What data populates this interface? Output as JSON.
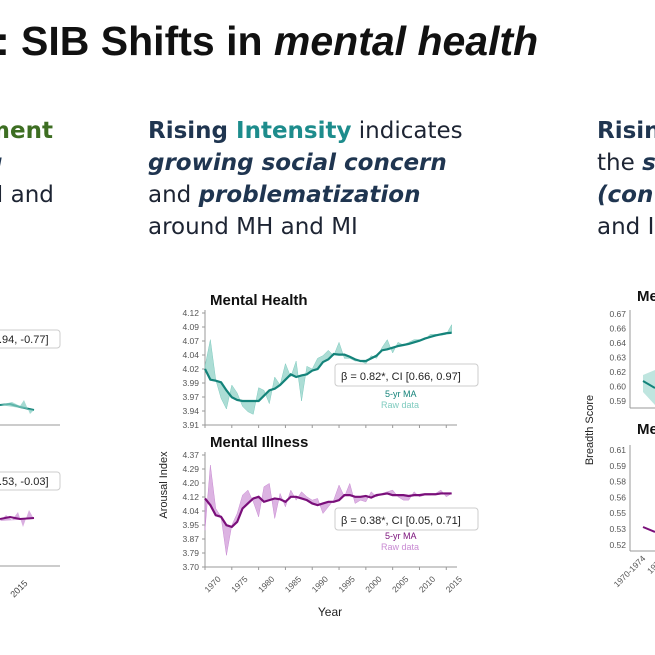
{
  "slide_title": {
    "prefix": ": SIB Shifts in ",
    "italic": "mental health"
  },
  "left_column": {
    "line1": "ment",
    "line2": "g",
    "line3": "H and",
    "line4": "s"
  },
  "middle_column": {
    "line1_a": "Rising ",
    "line1_b": "Intensity",
    "line1_c": " indicates",
    "line2": "growing social concern",
    "line3_a": "and ",
    "line3_b": "problematization",
    "line4": "around MH and MI"
  },
  "right_column": {
    "line1": "Risin",
    "line2_a": "the ",
    "line2_b": "s",
    "line3": "(con",
    "line4": "and I"
  },
  "left_partial_charts": {
    "mh_annotation": ".94, -0.77]",
    "mi_annotation": ".53, -0.03]",
    "x_tick": "2015"
  },
  "right_partial_charts": {
    "ylabel": "Breadth Score",
    "mh_title": "Me",
    "mi_title": "Me",
    "mh_ticks": [
      "0.67",
      "0.66",
      "0.64",
      "0.63",
      "0.62",
      "0.60",
      "0.59"
    ],
    "mi_ticks": [
      "0.61",
      "0.59",
      "0.58",
      "0.56",
      "0.55",
      "0.53",
      "0.52"
    ],
    "x_ticks": [
      "1970-1974",
      "1975-"
    ]
  },
  "colors": {
    "mh_ma": "#14837a",
    "mh_raw": "#7fcbbf",
    "mi_ma": "#7a0f7a",
    "mi_raw": "#c98bd3",
    "heading": "#1f3550",
    "accent_teal": "#1d8c8c",
    "accent_green": "#3d6e22"
  },
  "chart_data": [
    {
      "type": "line",
      "title": "Mental Health",
      "ylabel": "Arousal Index",
      "xlabel": "Year",
      "x_start": 1970,
      "ylim": [
        3.91,
        4.12
      ],
      "yticks": [
        "4.12",
        "4.09",
        "4.07",
        "4.04",
        "4.02",
        "3.99",
        "3.97",
        "3.94",
        "3.91"
      ],
      "annotation": "β = 0.82*, CI [0.66, 0.97]",
      "series": [
        {
          "name": "5-yr MA",
          "values": [
            4.015,
            3.995,
            3.993,
            3.99,
            3.975,
            3.962,
            3.957,
            3.955,
            3.955,
            3.955,
            3.955,
            3.965,
            3.975,
            3.978,
            3.985,
            3.995,
            4.005,
            4.0,
            4.003,
            4.005,
            4.012,
            4.015,
            4.028,
            4.033,
            4.043,
            4.042,
            4.042,
            4.038,
            4.033,
            4.03,
            4.03,
            4.035,
            4.04,
            4.05,
            4.052,
            4.055,
            4.058,
            4.06,
            4.062,
            4.065,
            4.068,
            4.072,
            4.075,
            4.078,
            4.08,
            4.082,
            4.083
          ]
        },
        {
          "name": "Raw data",
          "values": [
            4.02,
            4.07,
            3.995,
            3.96,
            3.94,
            3.985,
            3.97,
            3.945,
            3.935,
            3.93,
            3.98,
            3.975,
            3.95,
            4.0,
            3.985,
            4.025,
            4.0,
            4.03,
            3.955,
            4.02,
            4.015,
            4.035,
            4.04,
            4.05,
            4.04,
            4.065,
            4.035,
            4.035,
            4.03,
            4.03,
            4.025,
            4.04,
            4.035,
            4.055,
            4.07,
            4.045,
            4.065,
            4.06,
            4.065,
            4.07,
            4.07,
            4.07,
            4.08,
            4.08,
            4.078,
            4.08,
            4.098
          ]
        }
      ]
    },
    {
      "type": "line",
      "title": "Mental Illness",
      "ylabel": "Arousal Index",
      "xlabel": "Year",
      "x_start": 1970,
      "ylim": [
        3.7,
        4.37
      ],
      "yticks": [
        "4.37",
        "4.29",
        "4.20",
        "4.12",
        "4.04",
        "3.95",
        "3.87",
        "3.79",
        "3.70"
      ],
      "xticks": [
        "1970",
        "1975",
        "1980",
        "1985",
        "1990",
        "1995",
        "2000",
        "2005",
        "2010",
        "2015"
      ],
      "annotation": "β = 0.38*, CI [0.05, 0.71]",
      "series": [
        {
          "name": "5-yr MA",
          "values": [
            4.11,
            4.07,
            4.01,
            4.0,
            3.95,
            3.94,
            3.97,
            4.05,
            4.08,
            4.11,
            4.12,
            4.09,
            4.1,
            4.11,
            4.105,
            4.09,
            4.12,
            4.12,
            4.11,
            4.1,
            4.08,
            4.07,
            4.08,
            4.09,
            4.09,
            4.1,
            4.13,
            4.13,
            4.12,
            4.12,
            4.125,
            4.115,
            4.13,
            4.135,
            4.14,
            4.13,
            4.13,
            4.13,
            4.125,
            4.13,
            4.13,
            4.135,
            4.135,
            4.135,
            4.14,
            4.14,
            4.14
          ]
        },
        {
          "name": "Raw data",
          "values": [
            3.92,
            4.31,
            4.05,
            4.0,
            3.77,
            3.95,
            4.02,
            4.13,
            4.16,
            4.09,
            4.0,
            4.18,
            4.2,
            3.99,
            4.14,
            4.06,
            4.16,
            4.1,
            4.15,
            4.12,
            4.1,
            4.11,
            4.02,
            4.06,
            4.1,
            4.19,
            4.12,
            4.2,
            4.08,
            4.1,
            4.09,
            4.15,
            4.12,
            4.14,
            4.15,
            4.16,
            4.12,
            4.1,
            4.1,
            4.15,
            4.12,
            4.13,
            4.13,
            4.14,
            4.16,
            4.12,
            4.14
          ]
        }
      ]
    }
  ]
}
